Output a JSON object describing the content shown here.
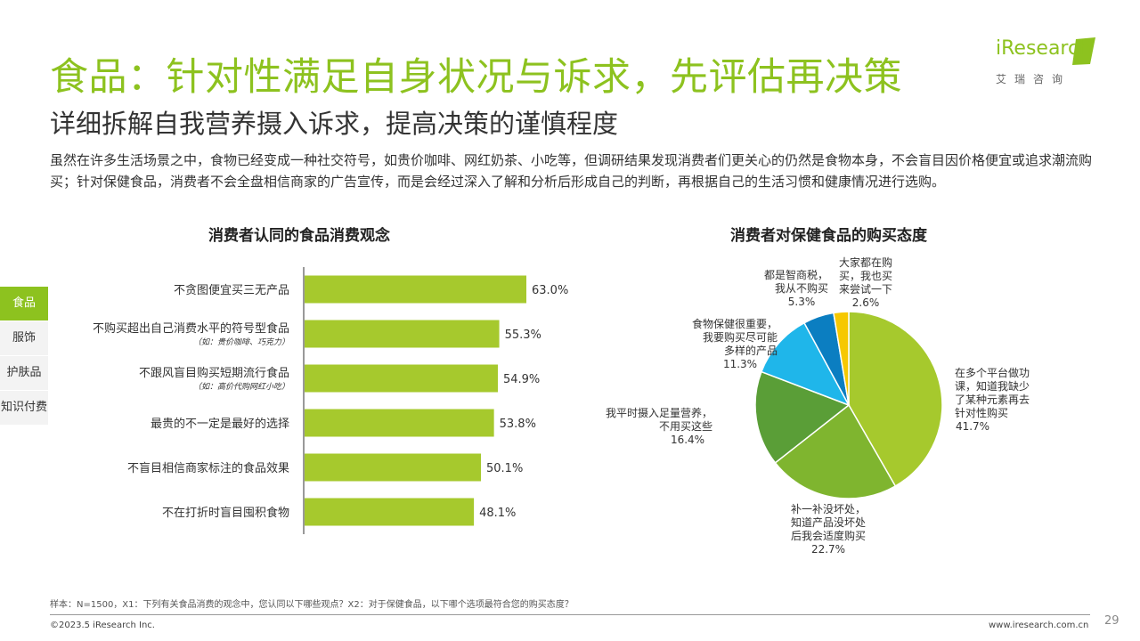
{
  "header": {
    "title": "食品：针对性满足自身状况与诉求，先评估再决策",
    "subtitle": "详细拆解自我营养摄入诉求，提高决策的谨慎程度",
    "description": "虽然在许多生活场景之中，食物已经变成一种社交符号，如贵价咖啡、网红奶茶、小吃等，但调研结果发现消费者们更关心的仍然是食物本身，不会盲目因价格便宜或追求潮流购买；针对保健食品，消费者不会全盘相信商家的广告宣传，而是会经过深入了解和分析后形成自己的判断，再根据自己的生活习惯和健康情况进行选购。"
  },
  "logo": {
    "word": "iResearch",
    "sub": "艾瑞咨询"
  },
  "sidenav": {
    "items": [
      "食品",
      "服饰",
      "护肤品",
      "知识付费"
    ]
  },
  "colors": {
    "accent": "#8dc21f",
    "bar": "#a6c92d"
  },
  "chart_data": [
    {
      "type": "bar",
      "orientation": "horizontal",
      "title": "消费者认同的食品消费观念",
      "categories": [
        "不贪图便宜买三无产品",
        "不购买超出自己消费水平的符号型食品",
        "不跟风盲目购买短期流行食品",
        "最贵的不一定是最好的选择",
        "不盲目相信商家标注的食品效果",
        "不在打折时盲目囤积食物"
      ],
      "notes": [
        "",
        "（如：贵价咖啡、巧克力）",
        "（如：高价代购网红小吃）",
        "",
        "",
        ""
      ],
      "values": [
        63.0,
        55.3,
        54.9,
        53.8,
        50.1,
        48.1
      ],
      "labels": [
        "63.0%",
        "55.3%",
        "54.9%",
        "53.8%",
        "50.1%",
        "48.1%"
      ],
      "xlim": [
        0,
        100
      ]
    },
    {
      "type": "pie",
      "title": "消费者对保健食品的购买态度",
      "slices": [
        {
          "label_lines": [
            "在多个平台做功",
            "课，知道我缺少",
            "了某种元素再去",
            "针对性购买"
          ],
          "value": 41.7,
          "pct_label": "41.7%",
          "color": "#a6c92d"
        },
        {
          "label_lines": [
            "补一补没坏处，",
            "知道产品没坏处",
            "后我会适度购买"
          ],
          "value": 22.7,
          "pct_label": "22.7%",
          "color": "#7fb52f"
        },
        {
          "label_lines": [
            "我平时摄入足量营养，",
            "不用买这些"
          ],
          "value": 16.4,
          "pct_label": "16.4%",
          "color": "#5a9e37"
        },
        {
          "label_lines": [
            "食物保健很重要，",
            "我要购买尽可能",
            "多样的产品"
          ],
          "value": 11.3,
          "pct_label": "11.3%",
          "color": "#1fb6ea"
        },
        {
          "label_lines": [
            "都是智商税，",
            "我从不购买"
          ],
          "value": 5.3,
          "pct_label": "5.3%",
          "color": "#0b7ec1"
        },
        {
          "label_lines": [
            "大家都在购",
            "买，我也买",
            "来尝试一下"
          ],
          "value": 2.6,
          "pct_label": "2.6%",
          "color": "#f6c800"
        }
      ]
    }
  ],
  "footer": {
    "note": "样本：N=1500，X1：下列有关食品消费的观念中，您认同以下哪些观点？X2：对于保健食品，以下哪个选项最符合您的购买态度？",
    "copyright": "©2023.5 iResearch Inc.",
    "website": "www.iresearch.com.cn",
    "page": "29"
  }
}
